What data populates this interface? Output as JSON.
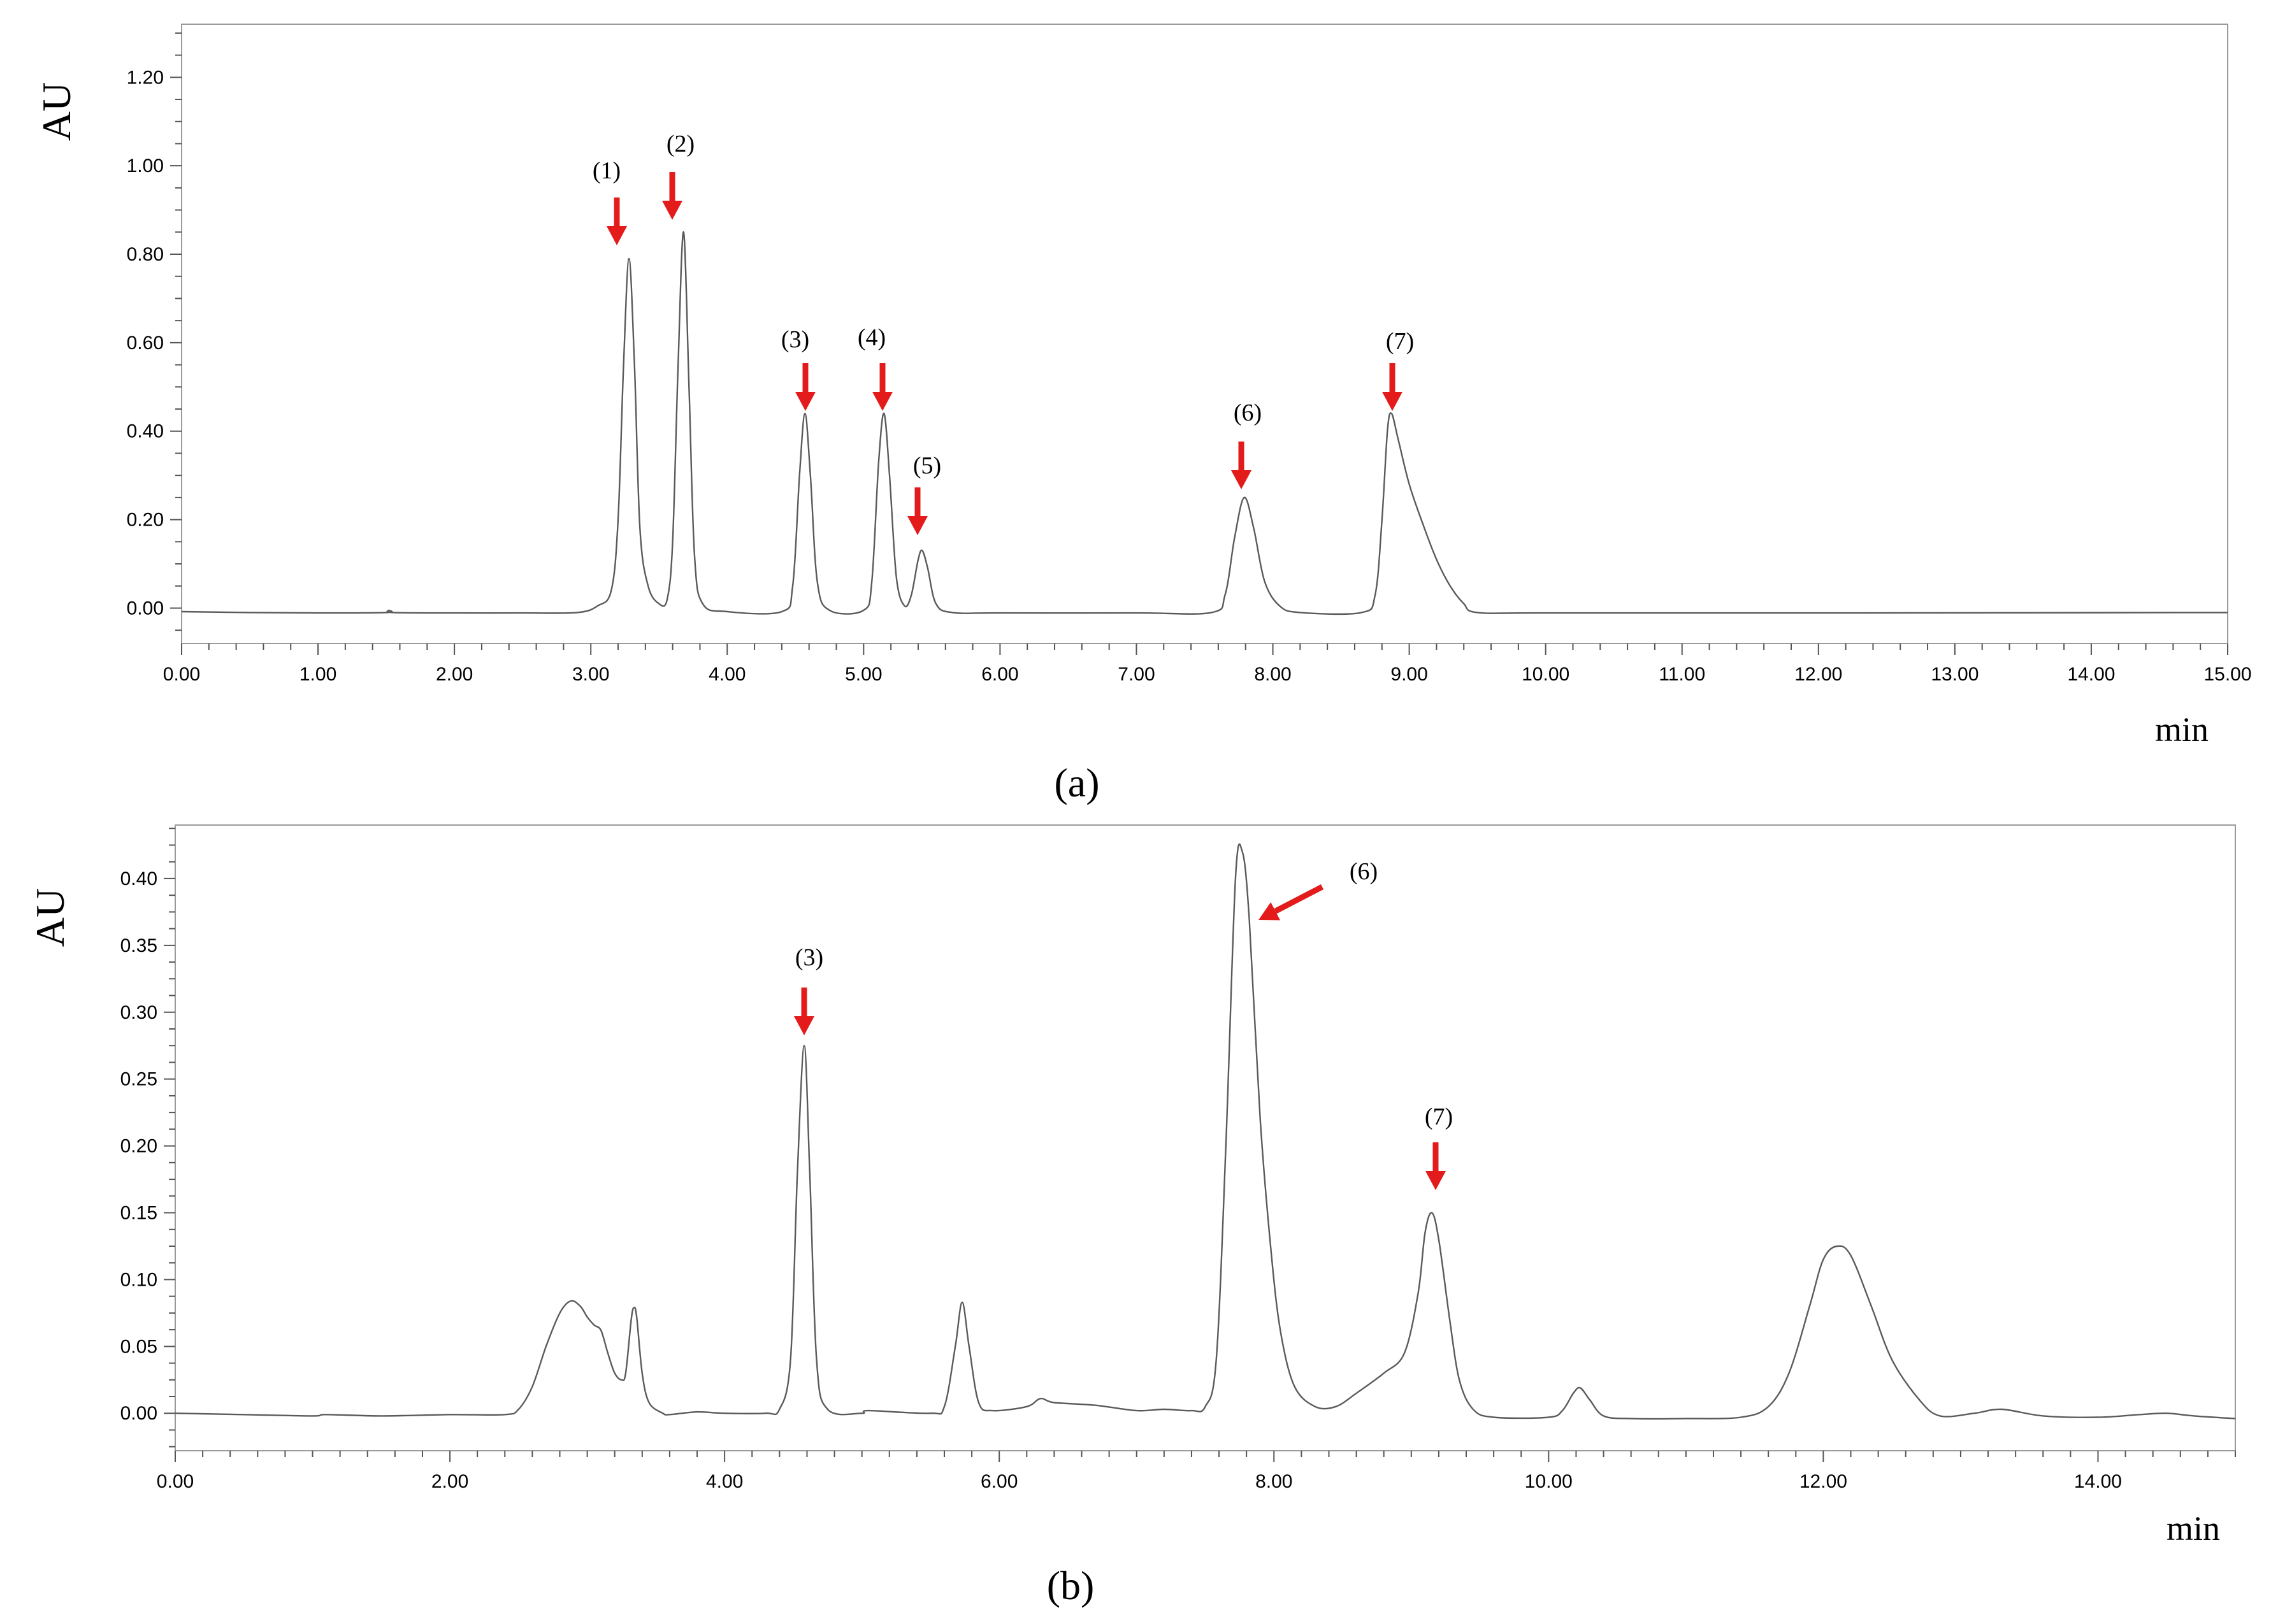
{
  "chart_data": [
    {
      "type": "line",
      "panel_label": "(a)",
      "ylabel": "AU",
      "xlabel": "min",
      "xlim": [
        0,
        15
      ],
      "ylim": [
        -0.08,
        1.32
      ],
      "x_ticks": [
        "0.00",
        "1.00",
        "2.00",
        "3.00",
        "4.00",
        "5.00",
        "6.00",
        "7.00",
        "8.00",
        "9.00",
        "10.00",
        "11.00",
        "12.00",
        "13.00",
        "14.00",
        "15.00"
      ],
      "y_ticks": [
        "0.00",
        "0.20",
        "0.40",
        "0.60",
        "0.80",
        "1.00",
        "1.20"
      ],
      "baseline": -0.01,
      "peaks": [
        {
          "label": "(1)",
          "rt": 3.28,
          "height": 0.79
        },
        {
          "label": "(2)",
          "rt": 3.68,
          "height": 0.85
        },
        {
          "label": "(3)",
          "rt": 4.57,
          "height": 0.44
        },
        {
          "label": "(4)",
          "rt": 5.15,
          "height": 0.44
        },
        {
          "label": "(5)",
          "rt": 5.43,
          "height": 0.13
        },
        {
          "label": "(6)",
          "rt": 7.79,
          "height": 0.25
        },
        {
          "label": "(7)",
          "rt": 8.87,
          "height": 0.44
        }
      ],
      "series": [
        {
          "values": [
            [
              0.0,
              -0.008
            ],
            [
              0.5,
              -0.01
            ],
            [
              1.0,
              -0.011
            ],
            [
              1.5,
              -0.01
            ],
            [
              1.52,
              -0.005
            ],
            [
              1.55,
              -0.01
            ],
            [
              2.0,
              -0.011
            ],
            [
              2.5,
              -0.011
            ],
            [
              2.9,
              -0.01
            ],
            [
              3.05,
              0.005
            ],
            [
              3.15,
              0.04
            ],
            [
              3.2,
              0.2
            ],
            [
              3.24,
              0.55
            ],
            [
              3.28,
              0.79
            ],
            [
              3.32,
              0.55
            ],
            [
              3.36,
              0.18
            ],
            [
              3.42,
              0.05
            ],
            [
              3.5,
              0.01
            ],
            [
              3.56,
              0.02
            ],
            [
              3.6,
              0.15
            ],
            [
              3.64,
              0.55
            ],
            [
              3.68,
              0.85
            ],
            [
              3.72,
              0.5
            ],
            [
              3.76,
              0.12
            ],
            [
              3.82,
              0.01
            ],
            [
              4.0,
              -0.008
            ],
            [
              4.4,
              -0.008
            ],
            [
              4.48,
              0.05
            ],
            [
              4.53,
              0.3
            ],
            [
              4.57,
              0.44
            ],
            [
              4.61,
              0.3
            ],
            [
              4.66,
              0.06
            ],
            [
              4.75,
              -0.005
            ],
            [
              5.0,
              -0.005
            ],
            [
              5.06,
              0.06
            ],
            [
              5.11,
              0.33
            ],
            [
              5.15,
              0.44
            ],
            [
              5.19,
              0.3
            ],
            [
              5.24,
              0.07
            ],
            [
              5.3,
              0.005
            ],
            [
              5.35,
              0.03
            ],
            [
              5.4,
              0.11
            ],
            [
              5.43,
              0.13
            ],
            [
              5.47,
              0.09
            ],
            [
              5.53,
              0.01
            ],
            [
              5.65,
              -0.01
            ],
            [
              6.0,
              -0.011
            ],
            [
              7.0,
              -0.011
            ],
            [
              7.55,
              -0.01
            ],
            [
              7.65,
              0.03
            ],
            [
              7.72,
              0.16
            ],
            [
              7.79,
              0.25
            ],
            [
              7.86,
              0.18
            ],
            [
              7.94,
              0.06
            ],
            [
              8.05,
              0.005
            ],
            [
              8.2,
              -0.01
            ],
            [
              8.65,
              -0.01
            ],
            [
              8.75,
              0.03
            ],
            [
              8.8,
              0.2
            ],
            [
              8.84,
              0.4
            ],
            [
              8.87,
              0.44
            ],
            [
              8.92,
              0.38
            ],
            [
              9.0,
              0.28
            ],
            [
              9.1,
              0.19
            ],
            [
              9.2,
              0.11
            ],
            [
              9.3,
              0.05
            ],
            [
              9.4,
              0.01
            ],
            [
              9.5,
              -0.01
            ],
            [
              10.0,
              -0.011
            ],
            [
              12.0,
              -0.011
            ],
            [
              15.0,
              -0.01
            ]
          ]
        }
      ]
    },
    {
      "type": "line",
      "panel_label": "(b)",
      "ylabel": "AU",
      "xlabel": "min",
      "xlim": [
        0,
        15
      ],
      "ylim": [
        -0.028,
        0.44
      ],
      "x_ticks": [
        "0.00",
        "2.00",
        "4.00",
        "6.00",
        "8.00",
        "10.00",
        "12.00",
        "14.00"
      ],
      "y_ticks": [
        "0.00",
        "0.05",
        "0.10",
        "0.15",
        "0.20",
        "0.25",
        "0.30",
        "0.35",
        "0.40"
      ],
      "baseline": 0.0,
      "peaks": [
        {
          "label": "(3)",
          "rt": 4.58,
          "height": 0.275
        },
        {
          "label": "(6)",
          "rt": 7.77,
          "height": 0.42
        },
        {
          "label": "(7)",
          "rt": 9.15,
          "height": 0.15
        }
      ],
      "series": [
        {
          "values": [
            [
              0.0,
              0.0
            ],
            [
              0.5,
              -0.001
            ],
            [
              1.0,
              -0.002
            ],
            [
              1.1,
              -0.001
            ],
            [
              1.5,
              -0.002
            ],
            [
              2.0,
              -0.001
            ],
            [
              2.4,
              -0.001
            ],
            [
              2.5,
              0.003
            ],
            [
              2.6,
              0.02
            ],
            [
              2.7,
              0.05
            ],
            [
              2.8,
              0.075
            ],
            [
              2.88,
              0.084
            ],
            [
              2.95,
              0.08
            ],
            [
              3.0,
              0.072
            ],
            [
              3.05,
              0.066
            ],
            [
              3.1,
              0.062
            ],
            [
              3.15,
              0.045
            ],
            [
              3.2,
              0.03
            ],
            [
              3.25,
              0.025
            ],
            [
              3.28,
              0.03
            ],
            [
              3.32,
              0.07
            ],
            [
              3.34,
              0.079
            ],
            [
              3.36,
              0.072
            ],
            [
              3.4,
              0.03
            ],
            [
              3.45,
              0.008
            ],
            [
              3.55,
              0.0
            ],
            [
              3.6,
              -0.001
            ],
            [
              3.8,
              0.001
            ],
            [
              4.0,
              0.0
            ],
            [
              4.3,
              0.0
            ],
            [
              4.4,
              0.003
            ],
            [
              4.48,
              0.04
            ],
            [
              4.53,
              0.18
            ],
            [
              4.58,
              0.275
            ],
            [
              4.62,
              0.18
            ],
            [
              4.67,
              0.04
            ],
            [
              4.75,
              0.003
            ],
            [
              5.0,
              0.0
            ],
            [
              5.05,
              0.002
            ],
            [
              5.5,
              0.0
            ],
            [
              5.6,
              0.005
            ],
            [
              5.68,
              0.05
            ],
            [
              5.73,
              0.083
            ],
            [
              5.78,
              0.05
            ],
            [
              5.85,
              0.008
            ],
            [
              5.95,
              0.002
            ],
            [
              6.2,
              0.005
            ],
            [
              6.3,
              0.011
            ],
            [
              6.4,
              0.008
            ],
            [
              6.7,
              0.006
            ],
            [
              7.0,
              0.002
            ],
            [
              7.2,
              0.003
            ],
            [
              7.4,
              0.002
            ],
            [
              7.5,
              0.005
            ],
            [
              7.58,
              0.04
            ],
            [
              7.65,
              0.2
            ],
            [
              7.72,
              0.4
            ],
            [
              7.77,
              0.42
            ],
            [
              7.82,
              0.37
            ],
            [
              7.9,
              0.22
            ],
            [
              7.98,
              0.12
            ],
            [
              8.05,
              0.06
            ],
            [
              8.15,
              0.02
            ],
            [
              8.3,
              0.005
            ],
            [
              8.45,
              0.005
            ],
            [
              8.6,
              0.015
            ],
            [
              8.8,
              0.03
            ],
            [
              8.95,
              0.045
            ],
            [
              9.05,
              0.09
            ],
            [
              9.1,
              0.135
            ],
            [
              9.15,
              0.15
            ],
            [
              9.2,
              0.13
            ],
            [
              9.28,
              0.07
            ],
            [
              9.35,
              0.025
            ],
            [
              9.45,
              0.003
            ],
            [
              9.6,
              -0.003
            ],
            [
              10.0,
              -0.003
            ],
            [
              10.1,
              0.002
            ],
            [
              10.18,
              0.015
            ],
            [
              10.23,
              0.019
            ],
            [
              10.3,
              0.01
            ],
            [
              10.4,
              -0.002
            ],
            [
              10.6,
              -0.004
            ],
            [
              11.0,
              -0.004
            ],
            [
              11.4,
              -0.003
            ],
            [
              11.6,
              0.005
            ],
            [
              11.75,
              0.03
            ],
            [
              11.9,
              0.08
            ],
            [
              12.0,
              0.115
            ],
            [
              12.1,
              0.125
            ],
            [
              12.2,
              0.118
            ],
            [
              12.35,
              0.08
            ],
            [
              12.5,
              0.04
            ],
            [
              12.7,
              0.01
            ],
            [
              12.85,
              -0.002
            ],
            [
              13.1,
              0.0
            ],
            [
              13.3,
              0.003
            ],
            [
              13.6,
              -0.002
            ],
            [
              14.0,
              -0.003
            ],
            [
              14.3,
              -0.001
            ],
            [
              14.5,
              0.0
            ],
            [
              14.7,
              -0.002
            ],
            [
              15.0,
              -0.004
            ]
          ]
        }
      ]
    }
  ]
}
